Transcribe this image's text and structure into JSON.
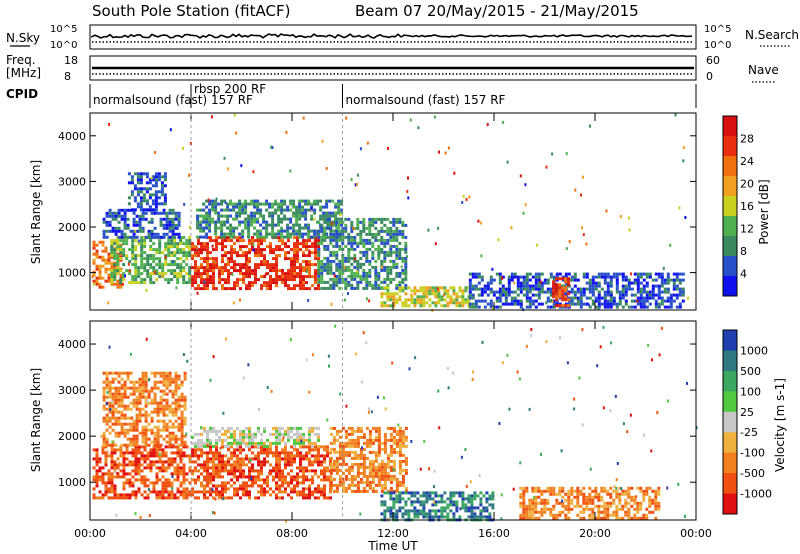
{
  "title": {
    "station": "South Pole Station (fitACF)",
    "beam": "Beam 07",
    "dates": "20/May/2015 - 21/May/2015"
  },
  "top_panels": {
    "noise": {
      "left_label": "N.Sky",
      "right_label": "N.Search",
      "left_ticks": [
        "10^5",
        "10^0"
      ],
      "right_ticks": [
        "10^5",
        "10^0"
      ]
    },
    "freq": {
      "left_label_1": "Freq.",
      "left_label_2": "[MHz]",
      "right_label": "Nave",
      "left_ticks": [
        "18",
        "8"
      ],
      "right_ticks": [
        "60",
        "0"
      ]
    },
    "cpid": {
      "label": "CPID",
      "segments": [
        {
          "name": "normalsound (fast) 157 RF",
          "start_hr": 0,
          "end_hr": 4
        },
        {
          "name": "rbsp 200 RF",
          "start_hr": 4,
          "end_hr": 10
        },
        {
          "name": "normalsound (fast) 157 RF",
          "start_hr": 10,
          "end_hr": 24
        }
      ]
    }
  },
  "x_axis": {
    "label": "Time UT",
    "tick_labels": [
      "00:00",
      "04:00",
      "08:00",
      "12:00",
      "16:00",
      "20:00",
      "00:00"
    ],
    "range_hr": [
      0,
      24
    ]
  },
  "colors": {
    "power_scale": [
      "#1010ee",
      "#2850c8",
      "#3a8a60",
      "#50b050",
      "#c8d020",
      "#f0a020",
      "#f07010",
      "#e83010",
      "#d81010"
    ],
    "velocity_scale": [
      "#2040b0",
      "#2f7a80",
      "#3aa860",
      "#50c840",
      "#c8c8c8",
      "#f0b040",
      "#f08020",
      "#f05010",
      "#e01010"
    ]
  },
  "chart_data": [
    {
      "type": "heatmap",
      "panel": "power",
      "ylabel": "Slant Range [km]",
      "ylim": [
        180,
        4500
      ],
      "yticks": [
        1000,
        2000,
        3000,
        4000
      ],
      "colorbar_label": "Power [dB]",
      "colorbar_ticks": [
        "4",
        "8",
        "12",
        "16",
        "20",
        "24",
        "28"
      ],
      "colorbar_range": [
        0,
        32
      ],
      "regions": [
        {
          "t0": 0.1,
          "t1": 1.2,
          "r0": 650,
          "r1": 1700,
          "value": 22
        },
        {
          "t0": 0.8,
          "t1": 3.9,
          "r0": 800,
          "r1": 1800,
          "value": 14
        },
        {
          "t0": 0.5,
          "t1": 3.5,
          "r0": 1800,
          "r1": 2400,
          "value": 6
        },
        {
          "t0": 1.5,
          "t1": 3.0,
          "r0": 2400,
          "r1": 3200,
          "value": 5
        },
        {
          "t0": 4.0,
          "t1": 9.0,
          "r0": 650,
          "r1": 1800,
          "value": 28
        },
        {
          "t0": 4.2,
          "t1": 10.0,
          "r0": 1800,
          "r1": 2600,
          "value": 10
        },
        {
          "t0": 9.0,
          "t1": 12.5,
          "r0": 650,
          "r1": 2200,
          "value": 9
        },
        {
          "t0": 11.5,
          "t1": 15.0,
          "r0": 250,
          "r1": 700,
          "value": 17
        },
        {
          "t0": 15.0,
          "t1": 23.5,
          "r0": 250,
          "r1": 1000,
          "value": 7
        },
        {
          "t0": 18.3,
          "t1": 19.0,
          "r0": 300,
          "r1": 900,
          "value": 26
        }
      ]
    },
    {
      "type": "heatmap",
      "panel": "velocity",
      "ylabel": "Slant Range [km]",
      "ylim": [
        180,
        4500
      ],
      "yticks": [
        1000,
        2000,
        3000,
        4000
      ],
      "colorbar_label": "Velocity [m s-1]",
      "colorbar_ticks": [
        "1000",
        "500",
        "100",
        "25",
        "-25",
        "-100",
        "-500",
        "-1000"
      ],
      "colorbar_range": [
        -1000,
        1000
      ],
      "regions": [
        {
          "t0": 0.1,
          "t1": 4.0,
          "r0": 650,
          "r1": 1800,
          "value": -600
        },
        {
          "t0": 0.5,
          "t1": 3.8,
          "r0": 1800,
          "r1": 3400,
          "value": -150
        },
        {
          "t0": 4.0,
          "t1": 9.5,
          "r0": 650,
          "r1": 1800,
          "value": -700
        },
        {
          "t0": 4.0,
          "t1": 9.0,
          "r0": 1800,
          "r1": 2200,
          "value": 0
        },
        {
          "t0": 9.5,
          "t1": 12.5,
          "r0": 800,
          "r1": 2200,
          "value": -250
        },
        {
          "t0": 11.5,
          "t1": 16.0,
          "r0": 200,
          "r1": 800,
          "value": 200
        },
        {
          "t0": 17.0,
          "t1": 22.5,
          "r0": 200,
          "r1": 900,
          "value": -300
        }
      ]
    }
  ]
}
